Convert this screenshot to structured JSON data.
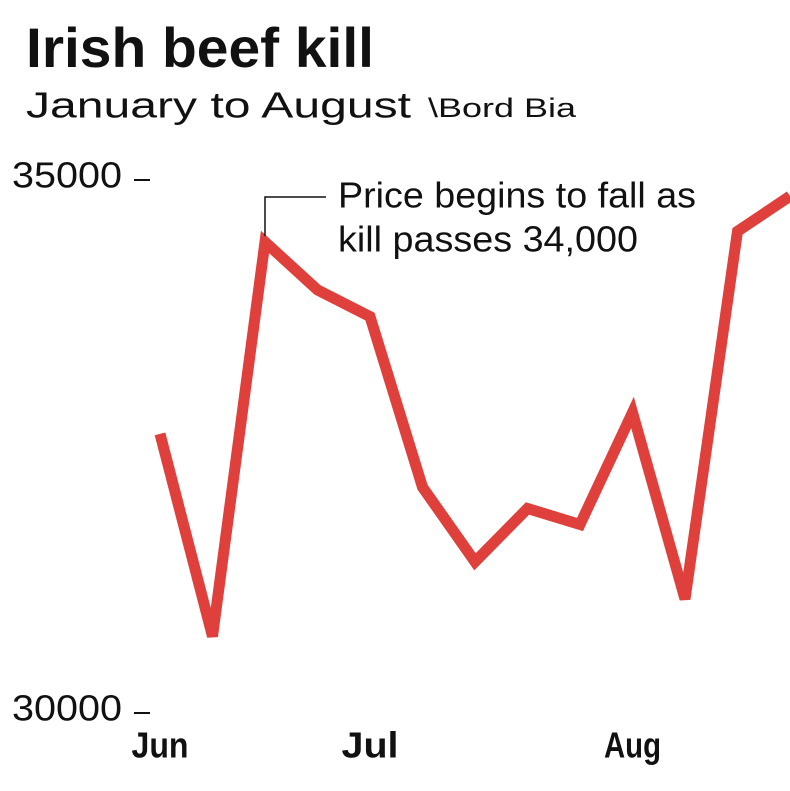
{
  "chart_data": {
    "type": "line",
    "title": "Irish beef kill",
    "subtitle": "January to August",
    "source": "\\Bord Bia",
    "annotation": [
      "Price begins to fall as",
      "kill passes 34,000"
    ],
    "categories": [
      "Jun",
      null,
      null,
      null,
      "Jul",
      null,
      null,
      null,
      null,
      "Aug",
      null,
      null,
      null
    ],
    "series": [
      {
        "name": "Beef kill",
        "color": "#e0403b",
        "values": [
          32600,
          30700,
          34400,
          33950,
          33700,
          32100,
          31400,
          31900,
          31750,
          32800,
          31050,
          34500,
          34830
        ]
      }
    ],
    "ylim": [
      30000,
      35000
    ],
    "yticks": [
      30000,
      35000
    ],
    "grid": false
  }
}
